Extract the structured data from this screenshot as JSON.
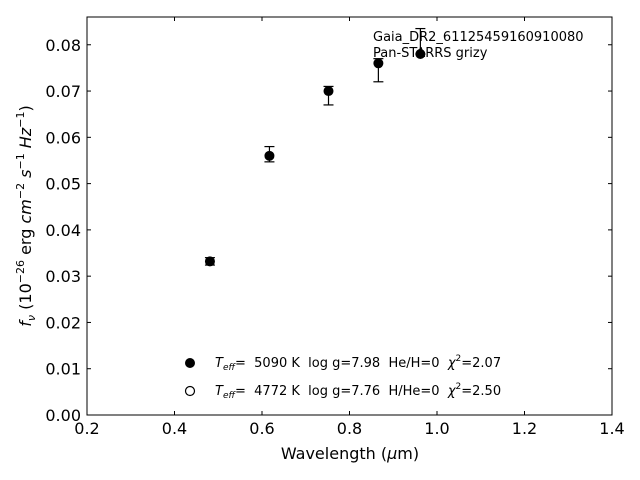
{
  "chart_data": {
    "type": "scatter",
    "xlabel": "Wavelength (μm)",
    "ylabel": "f_ν (10^-26 erg cm^-2 s^-1 Hz^-1)",
    "xlim": [
      0.2,
      1.4
    ],
    "ylim": [
      0.0,
      0.086
    ],
    "x_ticks": [
      0.2,
      0.4,
      0.6,
      0.8,
      1.0,
      1.2,
      1.4
    ],
    "x_tick_labels": [
      "0.2",
      "0.4",
      "0.6",
      "0.8",
      "1.0",
      "1.2",
      "1.4"
    ],
    "y_ticks": [
      0.0,
      0.01,
      0.02,
      0.03,
      0.04,
      0.05,
      0.06,
      0.07,
      0.08
    ],
    "y_tick_labels": [
      "0.00",
      "0.01",
      "0.02",
      "0.03",
      "0.04",
      "0.05",
      "0.06",
      "0.07",
      "0.08"
    ],
    "grid": false,
    "annotations": [
      "Gaia_DR2_61125459160910080",
      "Pan-STARRS grizy"
    ],
    "observed": [
      {
        "x": 0.481,
        "y": 0.0332,
        "yerr_low": 0.0008,
        "yerr_high": 0.0008
      },
      {
        "x": 0.617,
        "y": 0.056,
        "yerr_low": 0.0013,
        "yerr_high": 0.002
      },
      {
        "x": 0.752,
        "y": 0.07,
        "yerr_low": 0.003,
        "yerr_high": 0.001
      },
      {
        "x": 0.866,
        "y": 0.076,
        "yerr_low": 0.004,
        "yerr_high": 0.001
      },
      {
        "x": 0.962,
        "y": 0.078,
        "yerr_low": 0.0,
        "yerr_high": 0.0055
      }
    ],
    "series": [
      {
        "name": "T_eff= 5090 K log g=7.98 He/H=0 χ²=2.07",
        "marker": "filled-circle",
        "x": [
          0.481,
          0.617,
          0.752,
          0.866,
          0.962
        ],
        "y": [
          0.0332,
          0.056,
          0.07,
          0.076,
          0.078
        ]
      },
      {
        "name": "T_eff= 4772 K log g=7.76 H/He=0 χ²=2.50",
        "marker": "open-circle",
        "x": [],
        "y": []
      }
    ],
    "legend": [
      {
        "marker": "filled",
        "teff_symbol": "T",
        "teff_sub": "eff",
        "rest": "=  5090 K  log g=7.98  He/H=0  ",
        "chi": "χ",
        "chi_sup": "2",
        "chi_val": "=2.07"
      },
      {
        "marker": "open",
        "teff_symbol": "T",
        "teff_sub": "eff",
        "rest": "=  4772 K  log g=7.76  H/He=0  ",
        "chi": "χ",
        "chi_sup": "2",
        "chi_val": "=2.50"
      }
    ],
    "legend_position": "lower-center",
    "colors": {
      "marker": "#000000",
      "axis": "#000000",
      "background": "#ffffff"
    }
  },
  "labels": {
    "xlabel_main": "Wavelength (",
    "xlabel_mu": "μ",
    "xlabel_unit": "m)",
    "ylabel_f": "f",
    "ylabel_nu": "ν",
    "ylabel_open": " (10",
    "ylabel_exp1": "−26",
    "ylabel_erg": " erg ",
    "ylabel_cm": "cm",
    "ylabel_exp2": "−2",
    "ylabel_s": " s",
    "ylabel_exp3": "−1",
    "ylabel_hz": " Hz",
    "ylabel_exp4": "−1",
    "ylabel_close": ")"
  }
}
